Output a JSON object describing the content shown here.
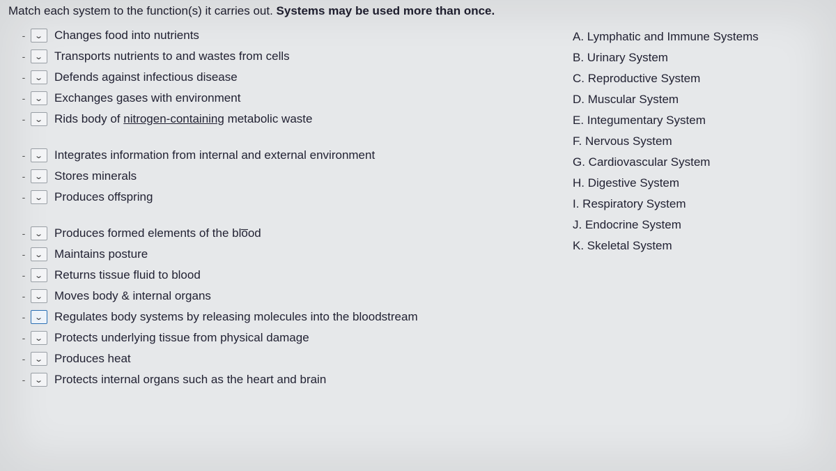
{
  "instruction_prefix": "Match each system to the function(s) it carries out. ",
  "instruction_bold": "Systems may be used more than once.",
  "groups": [
    {
      "items": [
        {
          "text": "Changes food into nutrients",
          "highlighted": false
        },
        {
          "text": "Transports nutrients to and wastes from cells",
          "highlighted": false
        },
        {
          "text": "Defends against infectious disease",
          "highlighted": false
        },
        {
          "text": "Exchanges gases with environment",
          "highlighted": false
        },
        {
          "text_html": "Rids body of <span class='ul'>nitrogen-containing</span> metabolic waste",
          "highlighted": false
        }
      ]
    },
    {
      "items": [
        {
          "text": "Integrates information from internal and external environment",
          "highlighted": false
        },
        {
          "text": "Stores minerals",
          "highlighted": false
        },
        {
          "text": "Produces offspring",
          "highlighted": false
        }
      ]
    },
    {
      "items": [
        {
          "text_html": "Produces formed elements of the bl<span>o̅</span>od",
          "highlighted": false
        },
        {
          "text": "Maintains posture",
          "highlighted": false
        },
        {
          "text": "Returns tissue fluid to blood",
          "highlighted": false
        },
        {
          "text": "Moves body & internal organs",
          "highlighted": false
        },
        {
          "text": "Regulates body systems by releasing molecules into the bloodstream",
          "highlighted": true
        },
        {
          "text": "Protects underlying tissue from physical damage",
          "highlighted": false
        },
        {
          "text": "Produces heat",
          "highlighted": false
        },
        {
          "text": "Protects internal organs such as the heart and brain",
          "highlighted": false
        }
      ]
    }
  ],
  "options": [
    "A. Lymphatic and Immune Systems",
    "B. Urinary System",
    "C. Reproductive System",
    "D. Muscular System",
    "E. Integumentary System",
    "F. Nervous System",
    "G. Cardiovascular System",
    "H. Digestive System",
    "I. Respiratory System",
    "J. Endocrine System",
    "K. Skeletal System"
  ],
  "dash": "-"
}
